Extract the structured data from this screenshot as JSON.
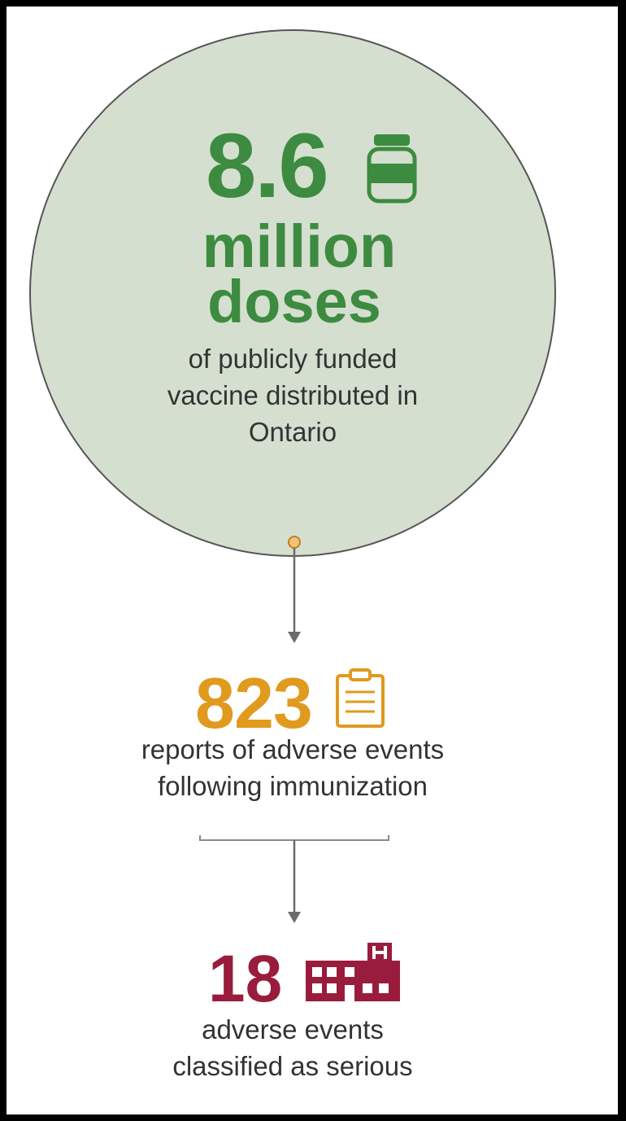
{
  "doses": {
    "number": "8.6",
    "unit_line1": "million",
    "unit_line2": "doses",
    "description": [
      "of publicly funded",
      "vaccine distributed in",
      "Ontario"
    ]
  },
  "reports": {
    "number": "823",
    "description": [
      "reports of adverse events",
      "following immunization"
    ]
  },
  "serious": {
    "number": "18",
    "description": [
      "adverse events",
      "classified as serious"
    ]
  },
  "icons": {
    "doses_icon": "vaccine-vial-icon",
    "reports_icon": "clipboard-icon",
    "serious_icon": "hospital-icon"
  },
  "colors": {
    "circle_fill": "#d5dfcf",
    "green": "#3d8b40",
    "orange": "#e09a1e",
    "red": "#9a1c3c",
    "text": "#333333"
  }
}
